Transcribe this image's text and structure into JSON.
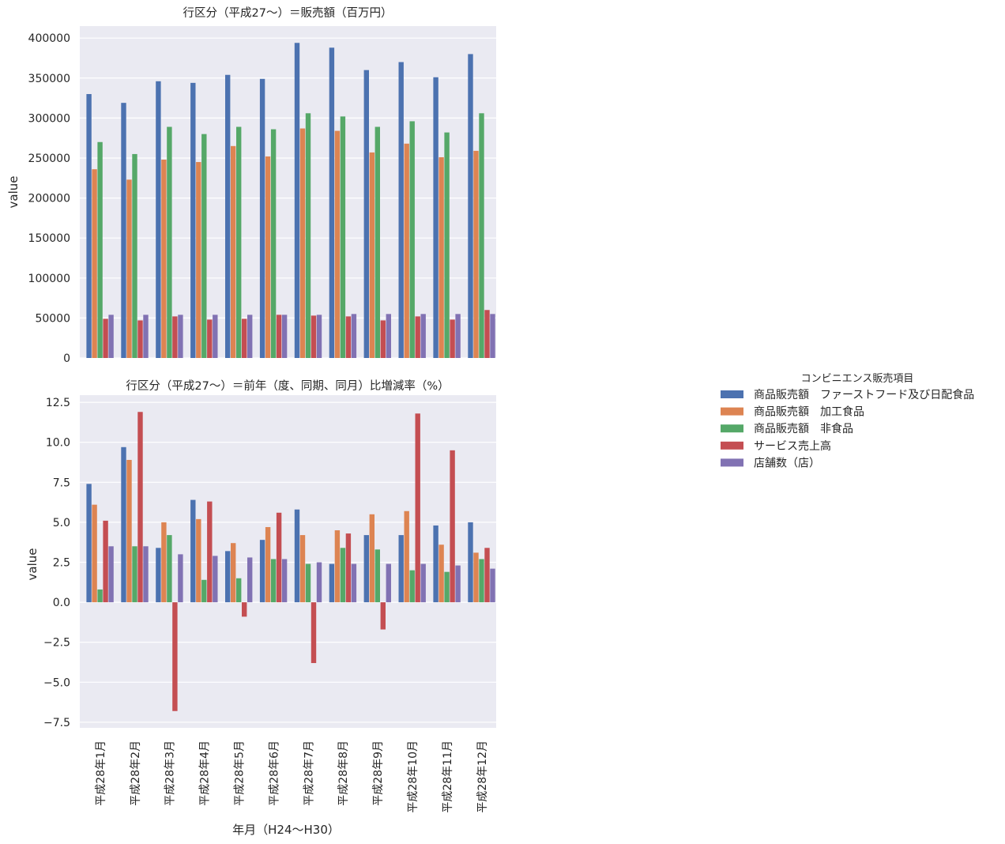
{
  "chart_data": [
    {
      "type": "bar",
      "title": "行区分（平成27〜）＝販売額（百万円）",
      "xlabel": "",
      "ylabel": "value",
      "ylim": [
        0,
        415000
      ],
      "yticks": [
        0,
        50000,
        100000,
        150000,
        200000,
        250000,
        300000,
        350000,
        400000
      ],
      "ytick_labels": [
        "0",
        "50000",
        "100000",
        "150000",
        "200000",
        "250000",
        "300000",
        "350000",
        "400000"
      ],
      "categories": [
        "平成28年1月",
        "平成28年2月",
        "平成28年3月",
        "平成28年4月",
        "平成28年5月",
        "平成28年6月",
        "平成28年7月",
        "平成28年8月",
        "平成28年9月",
        "平成28年10月",
        "平成28年11月",
        "平成28年12月"
      ],
      "series": [
        {
          "name": "商品販売額　ファーストフード及び日配食品",
          "color": "#4c72b0",
          "values": [
            330000,
            319000,
            346000,
            344000,
            354000,
            349000,
            394000,
            388000,
            360000,
            370000,
            351000,
            380000
          ]
        },
        {
          "name": "商品販売額　加工食品",
          "color": "#dd8452",
          "values": [
            236000,
            223000,
            248000,
            245000,
            265000,
            252000,
            287000,
            284000,
            257000,
            268000,
            251000,
            259000
          ]
        },
        {
          "name": "商品販売額　非食品",
          "color": "#55a868",
          "values": [
            270000,
            255000,
            289000,
            280000,
            289000,
            286000,
            306000,
            302000,
            289000,
            296000,
            282000,
            306000
          ]
        },
        {
          "name": "サービス売上高",
          "color": "#c44e52",
          "values": [
            49000,
            47000,
            52000,
            48000,
            49000,
            54000,
            53000,
            52000,
            47000,
            52000,
            48000,
            60000
          ]
        },
        {
          "name": "店舗数（店）",
          "color": "#8172b3",
          "values": [
            54000,
            54000,
            54000,
            54000,
            54000,
            54000,
            54000,
            55000,
            55000,
            55000,
            55000,
            55000
          ]
        }
      ]
    },
    {
      "type": "bar",
      "title": "行区分（平成27〜）＝前年（度、同期、同月）比増減率（%）",
      "xlabel": "年月（H24〜H30）",
      "ylabel": "value",
      "ylim": [
        -7.85,
        12.95
      ],
      "yticks": [
        -7.5,
        -5.0,
        -2.5,
        0.0,
        2.5,
        5.0,
        7.5,
        10.0,
        12.5
      ],
      "ytick_labels": [
        "−7.5",
        "−5.0",
        "−2.5",
        "0.0",
        "2.5",
        "5.0",
        "7.5",
        "10.0",
        "12.5"
      ],
      "categories": [
        "平成28年1月",
        "平成28年2月",
        "平成28年3月",
        "平成28年4月",
        "平成28年5月",
        "平成28年6月",
        "平成28年7月",
        "平成28年8月",
        "平成28年9月",
        "平成28年10月",
        "平成28年11月",
        "平成28年12月"
      ],
      "series": [
        {
          "name": "商品販売額　ファーストフード及び日配食品",
          "color": "#4c72b0",
          "values": [
            7.4,
            9.7,
            3.4,
            6.4,
            3.2,
            3.9,
            5.8,
            2.4,
            4.2,
            4.2,
            4.8,
            5.0
          ]
        },
        {
          "name": "商品販売額　加工食品",
          "color": "#dd8452",
          "values": [
            6.1,
            8.9,
            5.0,
            5.2,
            3.7,
            4.7,
            4.2,
            4.5,
            5.5,
            5.7,
            3.6,
            3.1
          ]
        },
        {
          "name": "商品販売額　非食品",
          "color": "#55a868",
          "values": [
            0.8,
            3.5,
            4.2,
            1.4,
            1.5,
            2.7,
            2.4,
            3.4,
            3.3,
            2.0,
            1.9,
            2.7
          ]
        },
        {
          "name": "サービス売上高",
          "color": "#c44e52",
          "values": [
            5.1,
            11.9,
            -6.8,
            6.3,
            -0.9,
            5.6,
            -3.8,
            4.3,
            -1.7,
            11.8,
            9.5,
            3.4
          ]
        },
        {
          "name": "店舗数（店）",
          "color": "#8172b3",
          "values": [
            3.5,
            3.5,
            3.0,
            2.9,
            2.8,
            2.7,
            2.5,
            2.4,
            2.4,
            2.4,
            2.3,
            2.1
          ]
        }
      ]
    }
  ],
  "legend": {
    "title": "コンビニエンス販売項目",
    "placement": "right-center",
    "items": [
      {
        "label": "商品販売額　ファーストフード及び日配食品",
        "color": "#4c72b0"
      },
      {
        "label": "商品販売額　加工食品",
        "color": "#dd8452"
      },
      {
        "label": "商品販売額　非食品",
        "color": "#55a868"
      },
      {
        "label": "サービス売上高",
        "color": "#c44e52"
      },
      {
        "label": "店舗数（店）",
        "color": "#8172b3"
      }
    ]
  }
}
